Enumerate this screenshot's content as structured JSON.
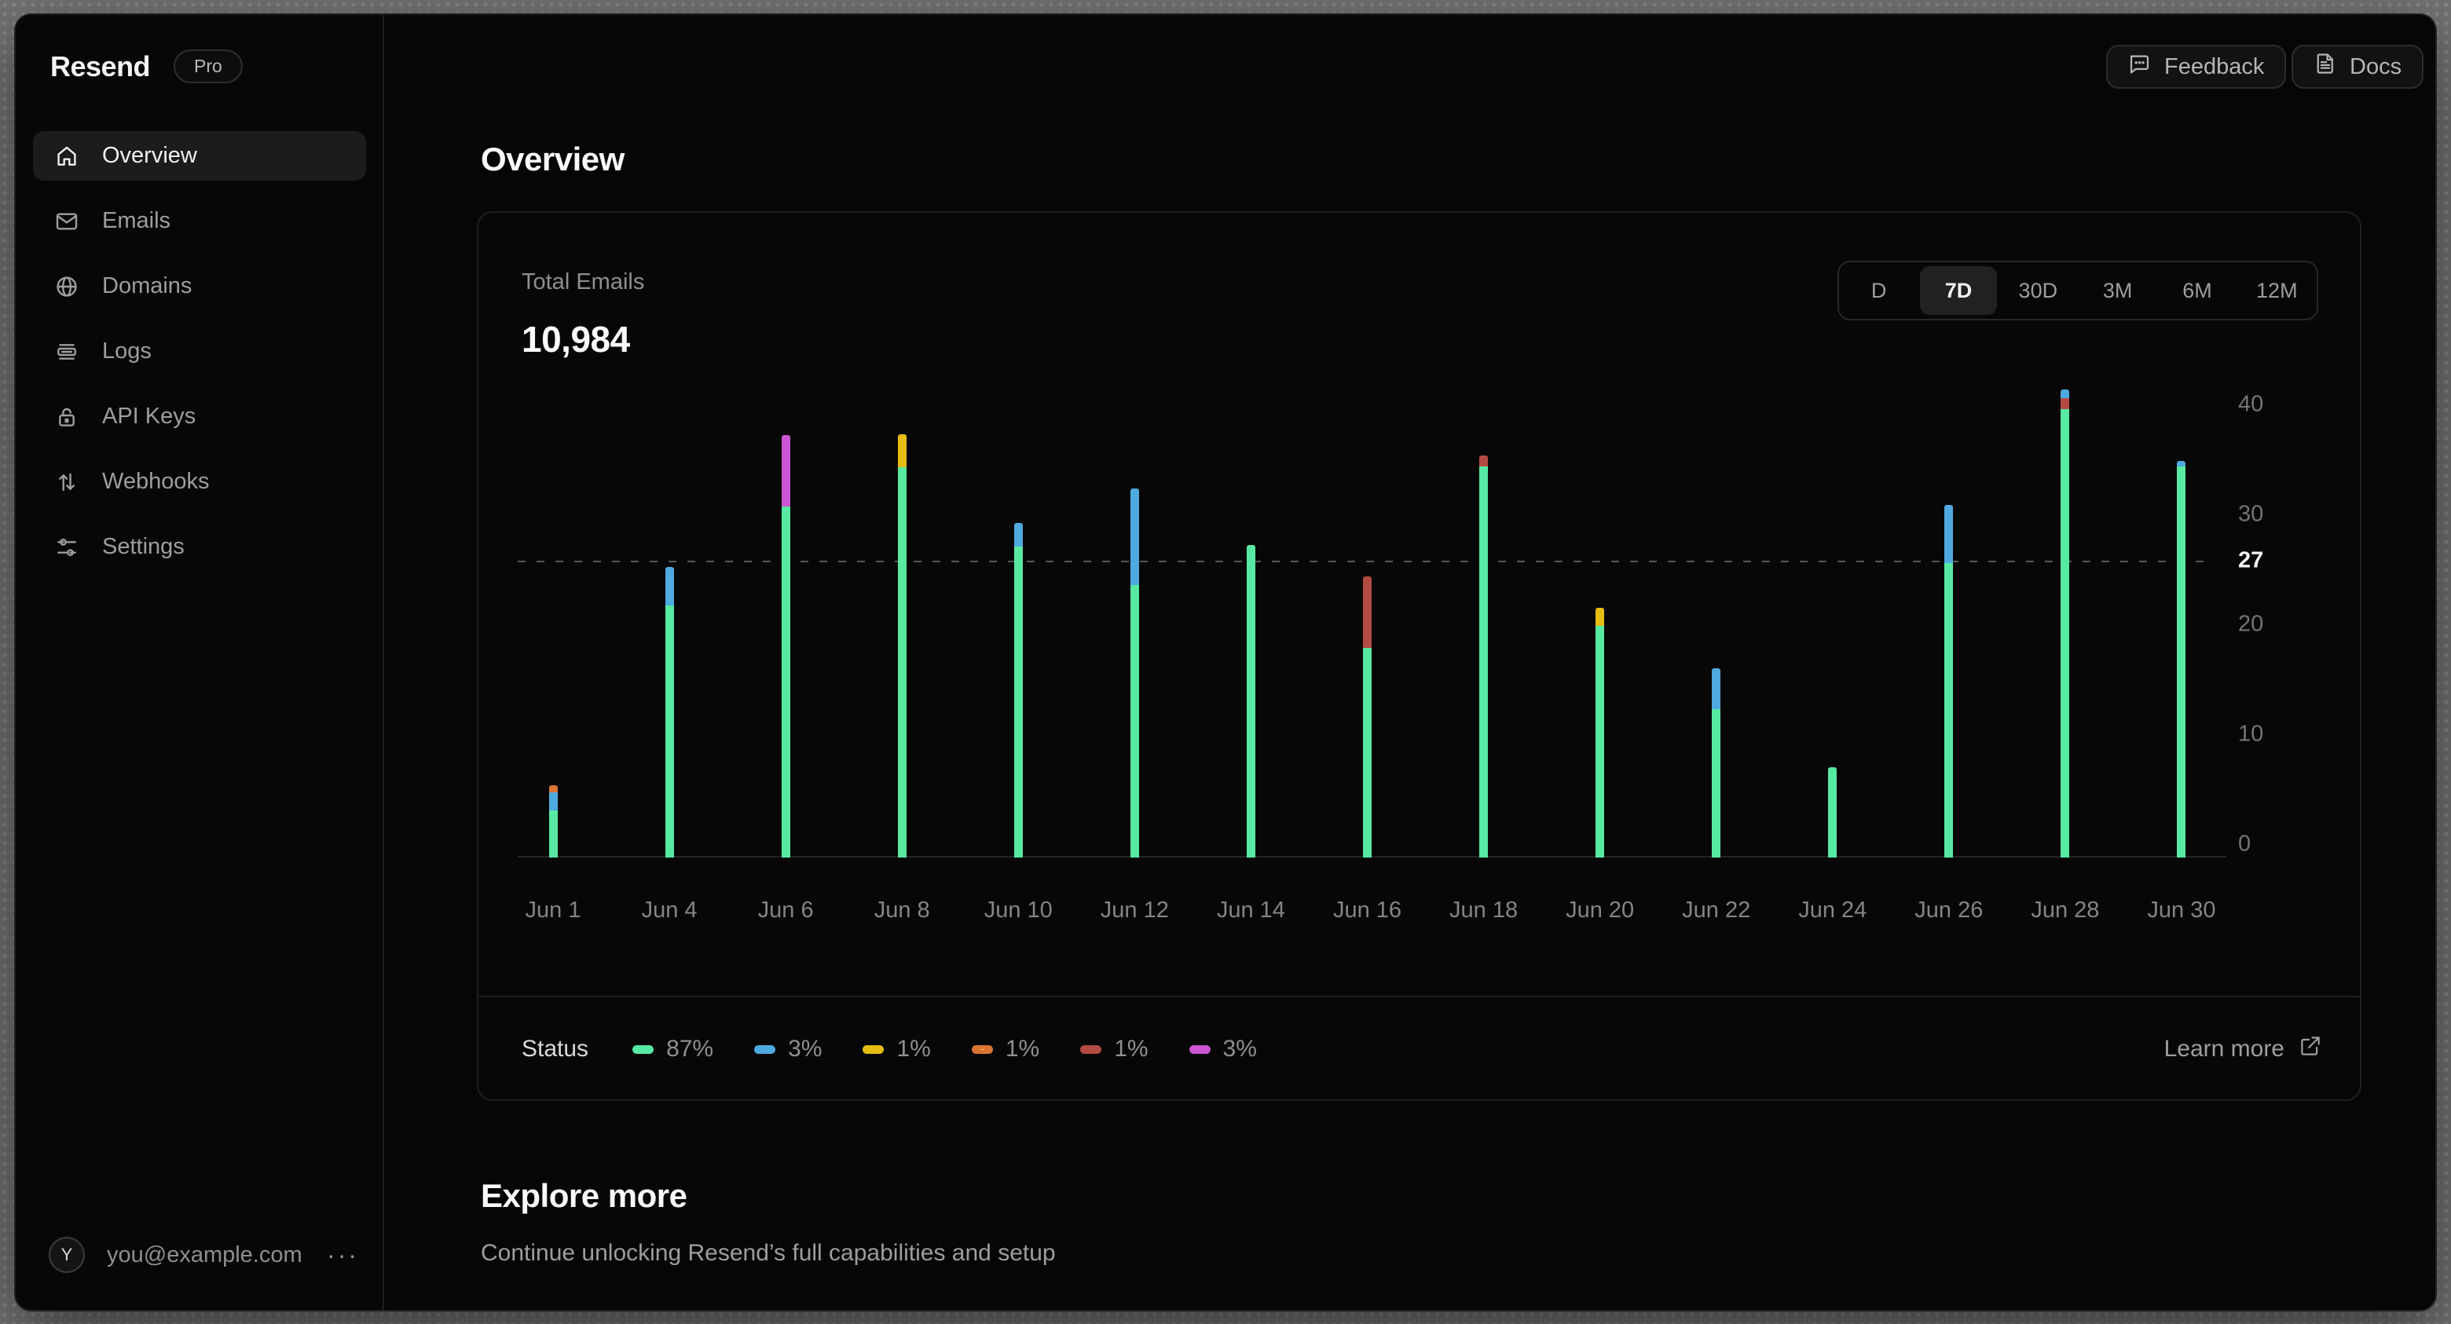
{
  "app": {
    "brand": "Resend",
    "plan_badge": "Pro"
  },
  "header": {
    "feedback_label": "Feedback",
    "docs_label": "Docs"
  },
  "page": {
    "title": "Overview"
  },
  "sidebar": {
    "items": [
      {
        "label": "Overview",
        "icon": "home",
        "active": true
      },
      {
        "label": "Emails",
        "icon": "mail",
        "active": false
      },
      {
        "label": "Domains",
        "icon": "globe",
        "active": false
      },
      {
        "label": "Logs",
        "icon": "logs",
        "active": false
      },
      {
        "label": "API Keys",
        "icon": "lock",
        "active": false
      },
      {
        "label": "Webhooks",
        "icon": "webhooks",
        "active": false
      },
      {
        "label": "Settings",
        "icon": "settings",
        "active": false
      }
    ],
    "user": {
      "avatar_initial": "Y",
      "email": "you@example.com",
      "menu_ellipsis": "···"
    }
  },
  "stats_card": {
    "metric_label": "Total Emails",
    "metric_value": "10,984",
    "range_options": [
      {
        "label": "D",
        "active": false
      },
      {
        "label": "7D",
        "active": true
      },
      {
        "label": "30D",
        "active": false
      },
      {
        "label": "3M",
        "active": false
      },
      {
        "label": "6M",
        "active": false
      },
      {
        "label": "12M",
        "active": false
      }
    ],
    "footer": {
      "legend_title": "Status",
      "learn_more_label": "Learn more"
    }
  },
  "chart_data": {
    "type": "bar",
    "stacked": true,
    "title": "Total Emails",
    "ylim": [
      0,
      42
    ],
    "y_ticks": [
      0,
      10,
      20,
      30,
      40
    ],
    "reference_line": {
      "value": 27,
      "style": "dashed"
    },
    "grid": "off",
    "legend_position": "bottom",
    "colors": {
      "green": "#57E9A2",
      "blue": "#4FAADF",
      "yellow": "#E6BD13",
      "orange": "#DB7433",
      "red": "#B34B42",
      "magenta": "#CB56D3"
    },
    "bars": [
      {
        "label": "Jun 1",
        "total": 6.6,
        "segments": [
          {
            "color": "green",
            "value": 4.3
          },
          {
            "color": "blue",
            "value": 1.6
          },
          {
            "color": "orange",
            "value": 0.7
          }
        ]
      },
      {
        "label": "Jun 4",
        "total": 26.4,
        "segments": [
          {
            "color": "green",
            "value": 22.9
          },
          {
            "color": "blue",
            "value": 3.5
          }
        ]
      },
      {
        "label": "Jun 6",
        "total": 38.4,
        "segments": [
          {
            "color": "green",
            "value": 31.9
          },
          {
            "color": "magenta",
            "value": 6.5
          }
        ]
      },
      {
        "label": "Jun 8",
        "total": 38.5,
        "segments": [
          {
            "color": "green",
            "value": 35.5
          },
          {
            "color": "yellow",
            "value": 3.0
          }
        ]
      },
      {
        "label": "Jun 10",
        "total": 30.4,
        "segments": [
          {
            "color": "green",
            "value": 28.3
          },
          {
            "color": "blue",
            "value": 2.1
          }
        ]
      },
      {
        "label": "Jun 12",
        "total": 33.6,
        "segments": [
          {
            "color": "green",
            "value": 24.8
          },
          {
            "color": "blue",
            "value": 8.8
          }
        ]
      },
      {
        "label": "Jun 14",
        "total": 28.4,
        "segments": [
          {
            "color": "green",
            "value": 28.4
          }
        ]
      },
      {
        "label": "Jun 16",
        "total": 25.6,
        "segments": [
          {
            "color": "green",
            "value": 19.1
          },
          {
            "color": "red",
            "value": 6.5
          }
        ]
      },
      {
        "label": "Jun 18",
        "total": 36.6,
        "segments": [
          {
            "color": "green",
            "value": 35.6
          },
          {
            "color": "red",
            "value": 1.0
          }
        ]
      },
      {
        "label": "Jun 20",
        "total": 22.7,
        "segments": [
          {
            "color": "green",
            "value": 21.1
          },
          {
            "color": "yellow",
            "value": 1.6
          }
        ]
      },
      {
        "label": "Jun 22",
        "total": 17.2,
        "segments": [
          {
            "color": "green",
            "value": 13.5
          },
          {
            "color": "blue",
            "value": 3.7
          }
        ]
      },
      {
        "label": "Jun 24",
        "total": 8.2,
        "segments": [
          {
            "color": "green",
            "value": 8.2
          }
        ]
      },
      {
        "label": "Jun 26",
        "total": 32.1,
        "segments": [
          {
            "color": "green",
            "value": 26.8
          },
          {
            "color": "blue",
            "value": 5.3
          }
        ]
      },
      {
        "label": "Jun 28",
        "total": 42.6,
        "segments": [
          {
            "color": "green",
            "value": 40.8
          },
          {
            "color": "red",
            "value": 1.0
          },
          {
            "color": "blue",
            "value": 0.8
          }
        ]
      },
      {
        "label": "Jun 30",
        "total": 36.1,
        "segments": [
          {
            "color": "green",
            "value": 35.6
          },
          {
            "color": "blue",
            "value": 0.5
          }
        ]
      }
    ],
    "legend": [
      {
        "color": "green",
        "percent": "87%",
        "pattern": "solid"
      },
      {
        "color": "blue",
        "percent": "3%",
        "pattern": "solid"
      },
      {
        "color": "yellow",
        "percent": "1%",
        "pattern": "solid"
      },
      {
        "color": "orange",
        "percent": "1%",
        "pattern": "dots"
      },
      {
        "color": "red",
        "percent": "1%",
        "pattern": "solid"
      },
      {
        "color": "magenta",
        "percent": "3%",
        "pattern": "solid"
      }
    ]
  },
  "explore": {
    "title": "Explore more",
    "subtitle": "Continue unlocking Resend’s full capabilities and setup"
  }
}
